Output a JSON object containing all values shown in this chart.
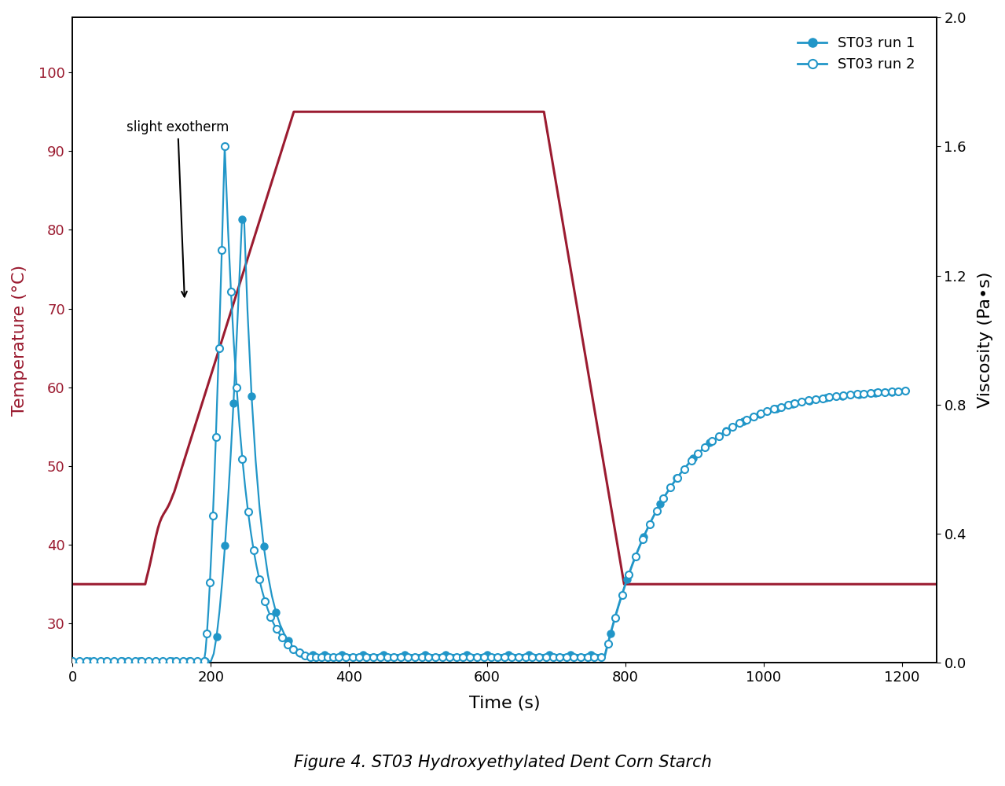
{
  "title": "Figure 4. ST03 Hydroxyethylated Dent Corn Starch",
  "xlabel": "Time (s)",
  "ylabel_left": "Temperature (°C)",
  "ylabel_right": "Viscosity (Pa•s)",
  "xlim": [
    0,
    1250
  ],
  "ylim_left": [
    25,
    107
  ],
  "ylim_right": [
    0.0,
    2.0
  ],
  "temp_color": "#9b1b30",
  "visc_color": "#2196c8",
  "annotation_text": "slight exotherm",
  "yticks_left": [
    30,
    40,
    50,
    60,
    70,
    80,
    90,
    100
  ],
  "yticks_right": [
    0.0,
    0.4,
    0.8,
    1.2,
    1.6,
    2.0
  ],
  "xticks": [
    0,
    200,
    400,
    600,
    800,
    1000,
    1200
  ]
}
